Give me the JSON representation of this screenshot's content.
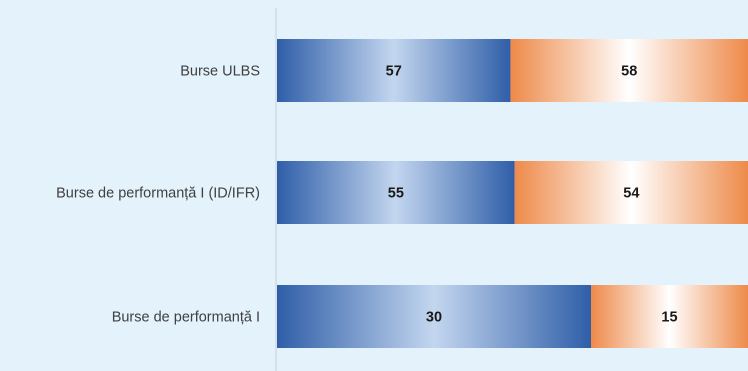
{
  "chart_data": {
    "type": "bar",
    "orientation": "horizontal",
    "stacked": true,
    "normalized_100_percent": true,
    "title": "",
    "xlabel": "",
    "ylabel": "",
    "categories": [
      "Burse ULBS",
      "Burse de performanță I (ID/IFR)",
      "Burse de performanță I"
    ],
    "series": [
      {
        "values": [
          57,
          55,
          30
        ],
        "color": "#2f5ea8",
        "gradient_center": "#c3d6ef"
      },
      {
        "values": [
          58,
          54,
          15
        ],
        "color": "#ee8a4a",
        "gradient_center": "#ffffff"
      }
    ],
    "grid": false,
    "legend": "none"
  }
}
